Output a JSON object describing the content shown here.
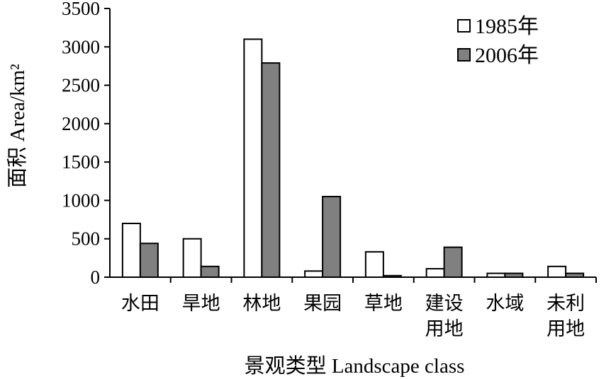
{
  "chart_data": {
    "type": "bar",
    "categories": [
      [
        "水田"
      ],
      [
        "旱地"
      ],
      [
        "林地"
      ],
      [
        "果园"
      ],
      [
        "草地"
      ],
      [
        "建设",
        "用地"
      ],
      [
        "水域"
      ],
      [
        "未利",
        "用地"
      ]
    ],
    "series": [
      {
        "name": "1985年",
        "color": "#ffffff",
        "values": [
          700,
          500,
          3100,
          80,
          330,
          110,
          50,
          140
        ]
      },
      {
        "name": "2006年",
        "color": "#808080",
        "values": [
          440,
          140,
          2790,
          1050,
          20,
          390,
          50,
          50
        ]
      }
    ],
    "xlabel": "景观类型  Landscape class",
    "ylabel": "面积  Area/km²",
    "ylim": [
      0,
      3500
    ],
    "yticks": [
      0,
      500,
      1000,
      1500,
      2000,
      2500,
      3000,
      3500
    ],
    "legend_position": "top-right",
    "grid": false
  }
}
